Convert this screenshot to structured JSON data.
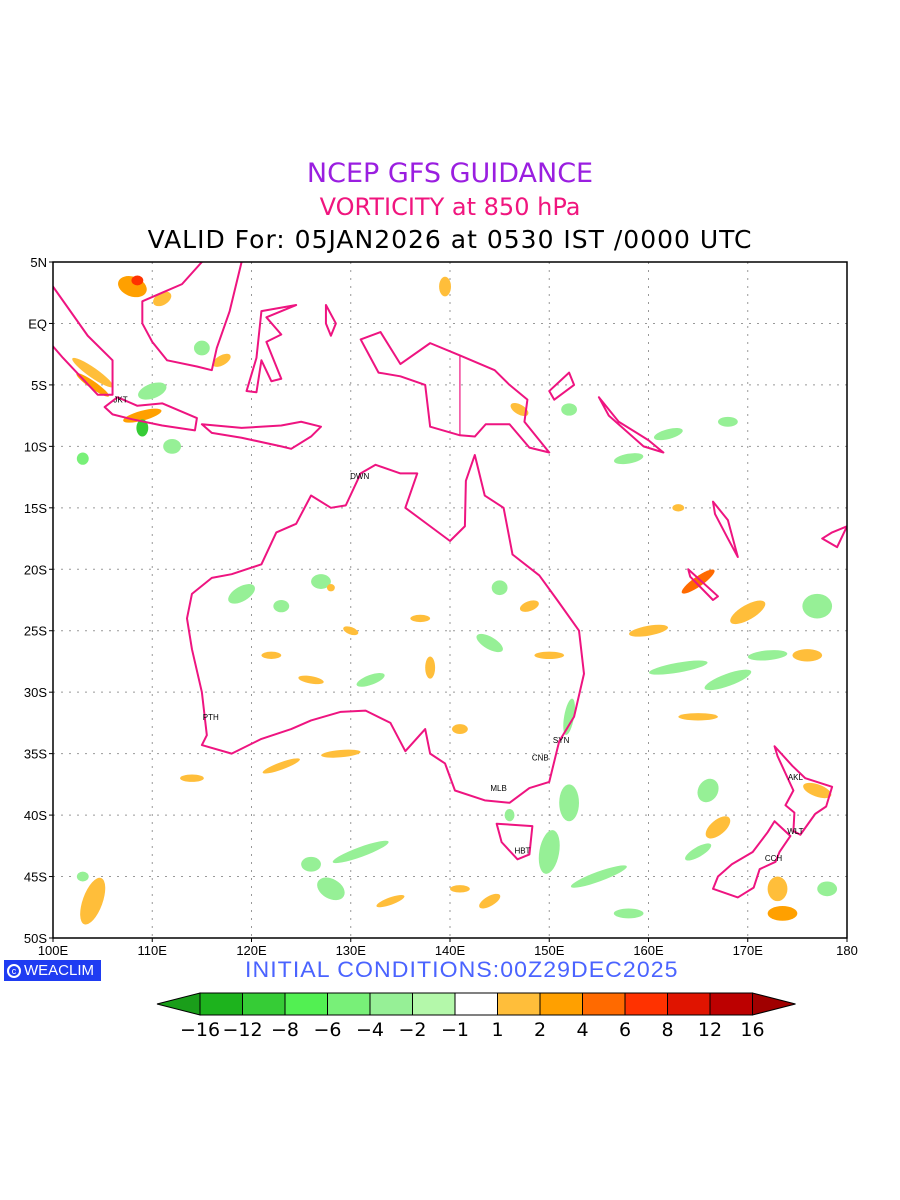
{
  "title": {
    "line1": "NCEP GFS GUIDANCE",
    "line2": "VORTICITY at 850 hPa",
    "line3": "VALID For: 05JAN2026 at 0530 IST /0000 UTC",
    "colors": {
      "line1": "#9a1ee0",
      "line2": "#f0157e",
      "line3": "#000000"
    }
  },
  "map": {
    "lon_range": [
      100,
      180
    ],
    "lat_range": [
      -50,
      5
    ],
    "coastline_color": "#ee1480",
    "x_ticks": [
      "100E",
      "110E",
      "120E",
      "130E",
      "140E",
      "150E",
      "160E",
      "170E",
      "180"
    ],
    "y_ticks": [
      "5N",
      "EQ",
      "5S",
      "10S",
      "15S",
      "20S",
      "25S",
      "30S",
      "35S",
      "40S",
      "45S",
      "50S"
    ],
    "cities": [
      {
        "name": "JKT",
        "lon": 106.8,
        "lat": -6.2
      },
      {
        "name": "DWN",
        "lon": 130.9,
        "lat": -12.4
      },
      {
        "name": "PTH",
        "lon": 115.9,
        "lat": -32.0
      },
      {
        "name": "SYN",
        "lon": 151.2,
        "lat": -33.9
      },
      {
        "name": "CNB",
        "lon": 149.1,
        "lat": -35.3
      },
      {
        "name": "MLB",
        "lon": 144.9,
        "lat": -37.8
      },
      {
        "name": "HBT",
        "lon": 147.3,
        "lat": -42.9
      },
      {
        "name": "AKL",
        "lon": 174.8,
        "lat": -36.9
      },
      {
        "name": "WLT",
        "lon": 174.8,
        "lat": -41.3
      },
      {
        "name": "CCH",
        "lon": 172.6,
        "lat": -43.5
      }
    ]
  },
  "footer": {
    "logo": "WEACLIM",
    "initial_conditions": "INITIAL  CONDITIONS:00Z29DEC2025"
  },
  "colorbar": {
    "labels": [
      "−16",
      "−12",
      "−8",
      "−6",
      "−4",
      "−2",
      "−1",
      "1",
      "2",
      "4",
      "6",
      "8",
      "12",
      "16"
    ],
    "colors": [
      "#1a9e1a",
      "#1db31d",
      "#36cc36",
      "#52f052",
      "#78f078",
      "#96f096",
      "#b4f8aa",
      "#ffffff",
      "#ffbe3a",
      "#ffa000",
      "#ff6a00",
      "#ff3200",
      "#e01400",
      "#bc0000",
      "#a00000"
    ]
  }
}
